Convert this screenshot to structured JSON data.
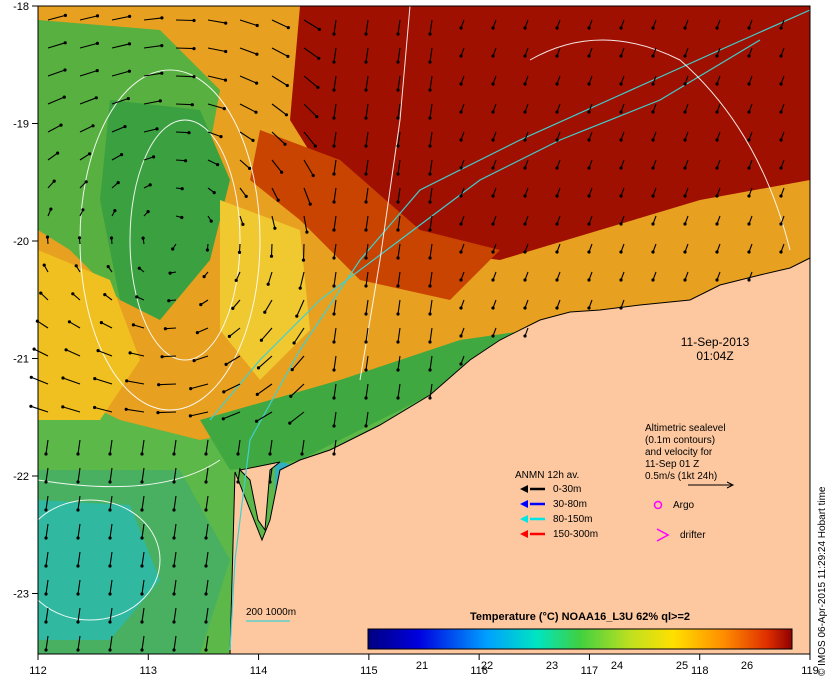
{
  "map": {
    "x_ticks": [
      "112",
      "113",
      "114",
      "115",
      "116",
      "117",
      "118",
      "119"
    ],
    "y_ticks": [
      "-18",
      "-19",
      "-20",
      "-21",
      "-22",
      "-23"
    ],
    "date": "11-Sep-2013",
    "time": "01:04Z",
    "sealevel_note": [
      "Altimetric sealevel",
      "(0.1m contours)",
      "and velocity for",
      "11-Sep 01 Z",
      "0.5m/s (1kt 24h)"
    ],
    "anmn_title": "ANMN 12h av.",
    "anmn_items": [
      {
        "label": "0-30m",
        "color": "#000000"
      },
      {
        "label": "30-80m",
        "color": "#0000ff"
      },
      {
        "label": "80-150m",
        "color": "#00e5e5"
      },
      {
        "label": "150-300m",
        "color": "#ff0000"
      }
    ],
    "argo_label": "Argo",
    "drifter_label": "drifter",
    "argo_color": "#ff00ff",
    "isobath_label": "200  1000m",
    "isobath_color": "#40d0d0",
    "colorbar_title": "Temperature (°C) NOAA16_L3U 62% ql>=2",
    "colorbar_ticks": [
      "21",
      "22",
      "23",
      "24",
      "25",
      "26"
    ],
    "credit": "© IMOS 06-Apr-2015 11:29:24 Hobart time",
    "land_color": "#fdc8a0"
  }
}
